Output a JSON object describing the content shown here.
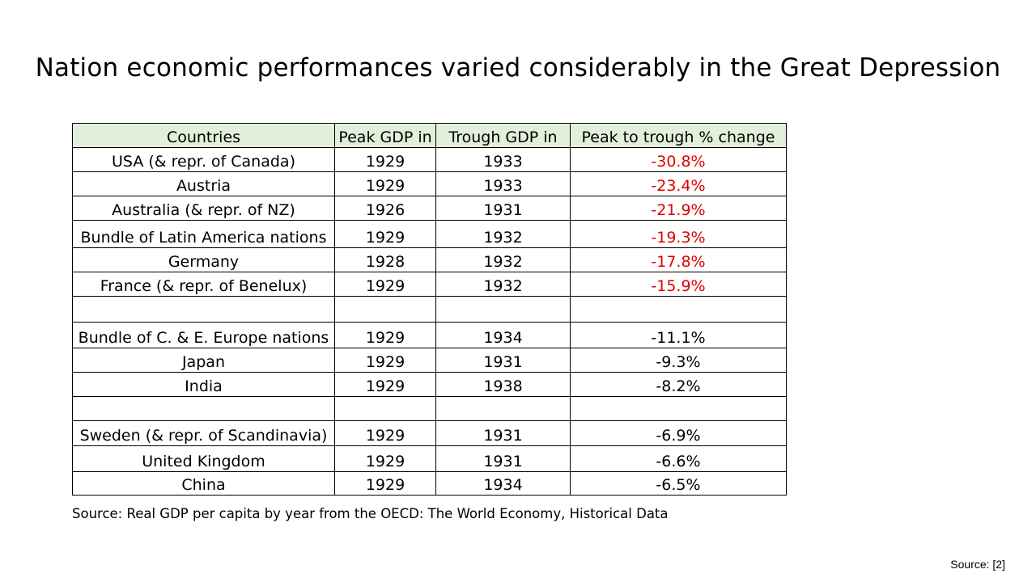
{
  "slide": {
    "title": "Nation economic performances varied considerably in the Great Depression",
    "source_note": "Source: Real GDP per capita by year from the OECD: The World Economy, Historical Data",
    "source_ref": "Source: [2]"
  },
  "table": {
    "header_bg": "#e2efda",
    "negative_highlight_color": "#e00000",
    "headers": [
      "Countries",
      "Peak GDP in",
      "Trough GDP in",
      "Peak to trough % change"
    ],
    "rows": [
      {
        "country": "USA  (& repr. of Canada)",
        "peak": "1929",
        "trough": "1933",
        "change": "-30.8%",
        "highlight": true
      },
      {
        "country": "Austria",
        "peak": "1929",
        "trough": "1933",
        "change": "-23.4%",
        "highlight": true
      },
      {
        "country": "Australia (& repr. of NZ)",
        "peak": "1926",
        "trough": "1931",
        "change": "-21.9%",
        "highlight": true
      },
      {
        "country": "Bundle of Latin America nations",
        "peak": "1929",
        "trough": "1932",
        "change": "-19.3%",
        "highlight": true
      },
      {
        "country": "Germany",
        "peak": "1928",
        "trough": "1932",
        "change": "-17.8%",
        "highlight": true
      },
      {
        "country": "France (& repr. of Benelux)",
        "peak": "1929",
        "trough": "1932",
        "change": "-15.9%",
        "highlight": true
      },
      {
        "country": "",
        "peak": "",
        "trough": "",
        "change": "",
        "highlight": false
      },
      {
        "country": "Bundle of C. & E. Europe nations",
        "peak": "1929",
        "trough": "1934",
        "change": "-11.1%",
        "highlight": false
      },
      {
        "country": "Japan",
        "peak": "1929",
        "trough": "1931",
        "change": "-9.3%",
        "highlight": false
      },
      {
        "country": "India",
        "peak": "1929",
        "trough": "1938",
        "change": "-8.2%",
        "highlight": false
      },
      {
        "country": "",
        "peak": "",
        "trough": "",
        "change": "",
        "highlight": false
      },
      {
        "country": "Sweden  (& repr. of Scandinavia)",
        "peak": "1929",
        "trough": "1931",
        "change": "-6.9%",
        "highlight": false
      },
      {
        "country": "United Kingdom",
        "peak": "1929",
        "trough": "1931",
        "change": "-6.6%",
        "highlight": false
      },
      {
        "country": "China",
        "peak": "1929",
        "trough": "1934",
        "change": "-6.5%",
        "highlight": false
      }
    ]
  }
}
